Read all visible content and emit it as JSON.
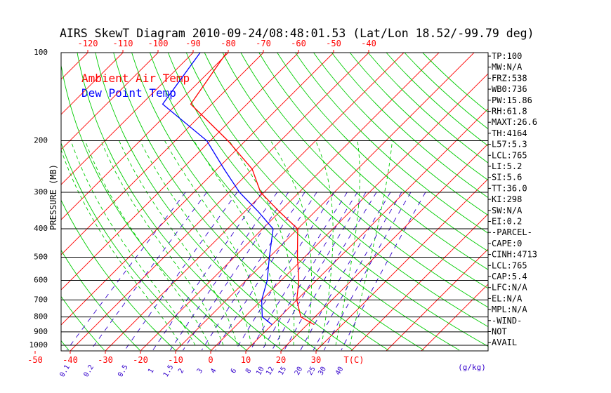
{
  "chart_data": {
    "type": "line",
    "title": "AIRS SkewT Diagram 2010-09-24/08:48:01.53 (Lat/Lon 18.52/-99.79 deg)",
    "ylabel": "PRESSURE (MB)",
    "pressure_ticks": [
      100,
      200,
      300,
      400,
      500,
      600,
      700,
      800,
      900,
      1000
    ],
    "top_temp_ticks": [
      -120,
      -110,
      -100,
      -90,
      -80,
      -70,
      -60,
      -50,
      -40
    ],
    "bottom_temp_ticks": [
      -50,
      -40,
      -30,
      -20,
      -10,
      0,
      10,
      20,
      30
    ],
    "bottom_unit_label": "T(C)",
    "mixing_ratio_ticks": [
      "0.1",
      "0.2",
      "0.5",
      "1",
      "1.5",
      "2",
      "3",
      "4",
      "6",
      "8",
      "10",
      "12",
      "15",
      "20",
      "25",
      "30",
      "40"
    ],
    "mixing_ratio_unit_label": "(g/kg)",
    "y_scale": "log",
    "ylim": [
      1050,
      100
    ],
    "series": [
      {
        "name": "Ambient Air Temp",
        "color": "#ff0000",
        "pressure": [
          100,
          150,
          200,
          250,
          300,
          350,
          400,
          500,
          600,
          700,
          800,
          850
        ],
        "temperature": [
          -80.5,
          -76,
          -55,
          -40,
          -31,
          -20,
          -10,
          -2,
          5,
          10,
          16,
          22
        ]
      },
      {
        "name": "Dew Point Temp",
        "color": "#0000ff",
        "pressure": [
          100,
          150,
          200,
          250,
          300,
          350,
          400,
          500,
          600,
          700,
          800,
          850
        ],
        "temperature": [
          -88,
          -84,
          -61,
          -48,
          -37,
          -26,
          -17,
          -10,
          -4,
          0,
          5,
          10
        ]
      }
    ],
    "indices": [
      "TP:100",
      "MW:N/A",
      "FRZ:538",
      "WB0:736",
      "PW:15.86",
      "RH:61.8",
      "MAXT:26.6",
      "TH:4164",
      "L57:5.3",
      "LCL:765",
      "LI:5.2",
      "SI:5.6",
      "TT:36.0",
      "KI:298",
      "SW:N/A",
      "EI:0.2",
      "-PARCEL-",
      "CAPE:0",
      "CINH:4713",
      "LCL:765",
      "CAP:5.4",
      "LFC:N/A",
      "EL:N/A",
      "MPL:N/A",
      "-WIND-",
      "NOT",
      "AVAIL"
    ],
    "colors": {
      "isotherm": "#ff0000",
      "dry_adiabat": "#00cc00",
      "moist_adiabat": "#00cc00",
      "mixing_ratio": "#3300cc",
      "frame": "#000000"
    }
  }
}
